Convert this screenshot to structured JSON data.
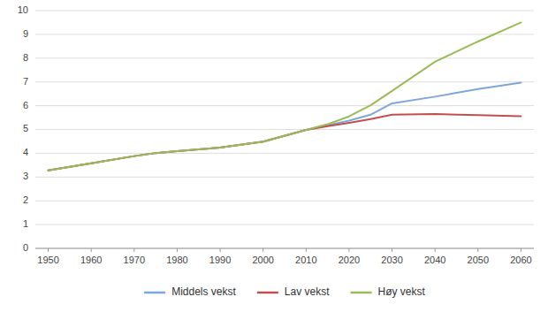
{
  "chart_data": {
    "type": "line",
    "x": [
      1950,
      1960,
      1970,
      1975,
      1980,
      1990,
      2000,
      2010,
      2015,
      2020,
      2025,
      2030,
      2040,
      2050,
      2060
    ],
    "series": [
      {
        "name": "Middels vekst",
        "color": "#7da7d9",
        "values": [
          3.28,
          3.58,
          3.88,
          4.01,
          4.09,
          4.24,
          4.49,
          4.98,
          5.18,
          5.37,
          5.62,
          6.1,
          6.38,
          6.7,
          6.97
        ]
      },
      {
        "name": "Lav vekst",
        "color": "#c0504d",
        "values": [
          3.28,
          3.58,
          3.88,
          4.01,
          4.09,
          4.24,
          4.49,
          4.98,
          5.14,
          5.28,
          5.44,
          5.62,
          5.65,
          5.6,
          5.56
        ]
      },
      {
        "name": "Høy vekst",
        "color": "#9bbb59",
        "values": [
          3.28,
          3.58,
          3.88,
          4.01,
          4.09,
          4.24,
          4.49,
          4.98,
          5.22,
          5.55,
          6.02,
          6.62,
          7.85,
          8.7,
          9.5
        ]
      }
    ],
    "xlim": [
      1947,
      2063
    ],
    "ylim": [
      0,
      10
    ],
    "xticks": [
      1950,
      1960,
      1970,
      1980,
      1990,
      2000,
      2010,
      2020,
      2030,
      2040,
      2050,
      2060
    ],
    "yticks": [
      0,
      1,
      2,
      3,
      4,
      5,
      6,
      7,
      8,
      9,
      10
    ],
    "grid": true,
    "legend": "bottom"
  }
}
